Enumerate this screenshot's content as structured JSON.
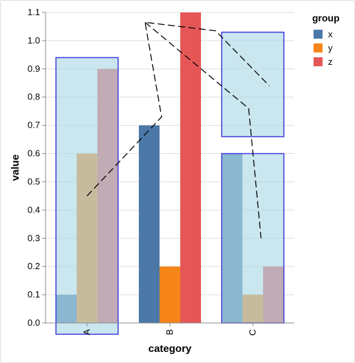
{
  "chart_data": {
    "type": "bar",
    "categories": [
      "A",
      "B",
      "C"
    ],
    "series": [
      {
        "name": "x",
        "values": [
          0.1,
          0.7,
          0.6
        ]
      },
      {
        "name": "y",
        "values": [
          0.6,
          0.2,
          0.1
        ]
      },
      {
        "name": "z",
        "values": [
          0.9,
          1.1,
          0.2
        ]
      }
    ],
    "xlabel": "category",
    "ylabel": "value",
    "ylim": [
      0,
      1.1
    ],
    "yticks": [
      "0.0",
      "0.1",
      "0.2",
      "0.3",
      "0.4",
      "0.5",
      "0.6",
      "0.7",
      "0.8",
      "0.9",
      "1.0",
      "1.1"
    ],
    "grid": true,
    "legend": {
      "title": "group",
      "placement": "top-right",
      "entries": [
        {
          "label": "x",
          "color": "#4c78a8"
        },
        {
          "label": "y",
          "color": "#f58518"
        },
        {
          "label": "z",
          "color": "#e45756"
        }
      ]
    },
    "selection_boxes": [
      {
        "category": "A",
        "y_range": [
          -0.04,
          0.94
        ]
      },
      {
        "category": "C",
        "y_range": [
          0.0,
          0.6
        ]
      },
      {
        "category": "C",
        "y_range": [
          0.66,
          1.03
        ]
      }
    ],
    "dashed_path": [
      {
        "x": "A",
        "offset": 0.0,
        "y": 0.45
      },
      {
        "x": "B",
        "offset": -0.1,
        "y": 0.73
      },
      {
        "x": "B",
        "offset": -0.3,
        "y": 1.065
      },
      {
        "x": "B",
        "offset": 0.55,
        "y": 1.035
      },
      {
        "x": "C",
        "offset": 0.2,
        "y": 0.84
      }
    ],
    "dashed_path_2": [
      {
        "x": "B",
        "offset": -0.3,
        "y": 1.065
      },
      {
        "x": "C",
        "offset": -0.05,
        "y": 0.76
      },
      {
        "x": "C",
        "offset": 0.1,
        "y": 0.3
      }
    ]
  }
}
